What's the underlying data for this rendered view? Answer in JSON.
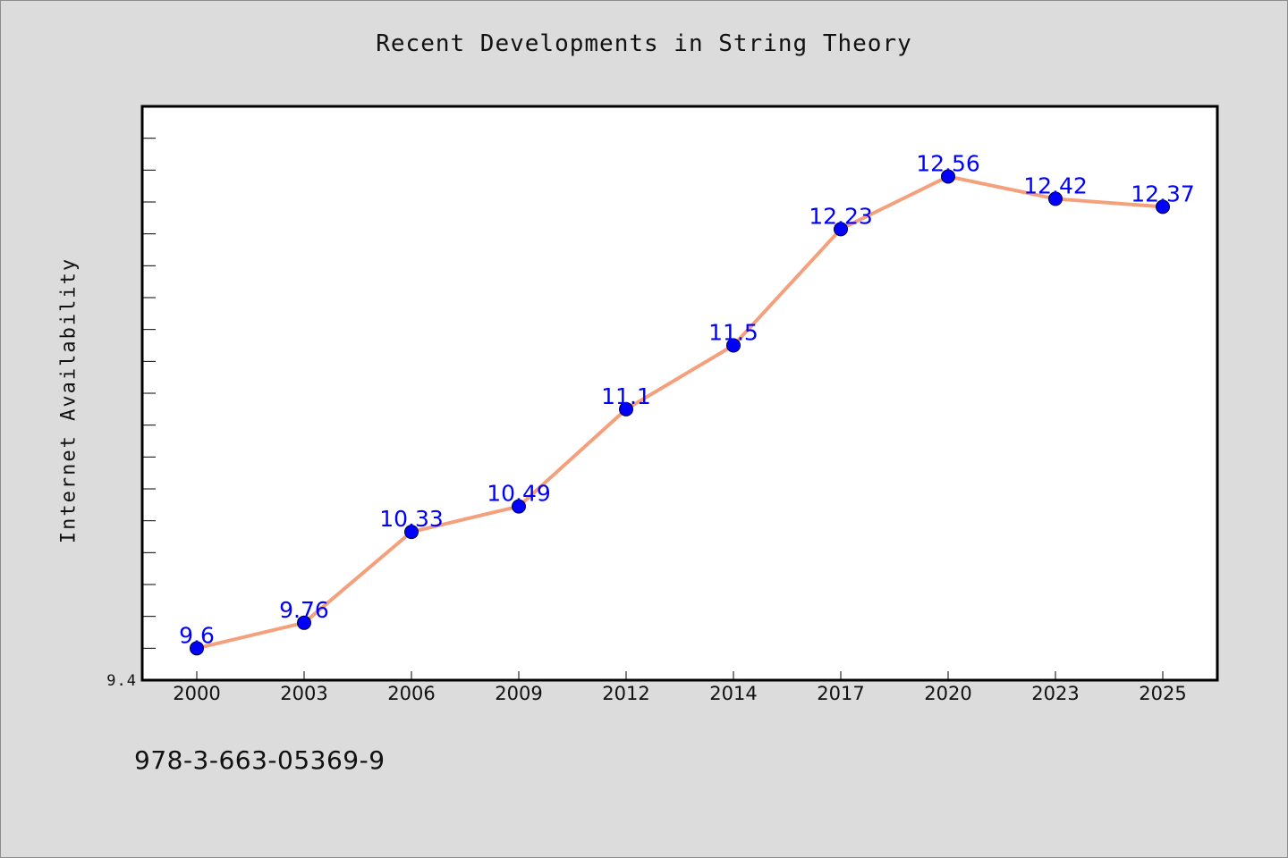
{
  "title": "Recent Developments in String Theory",
  "footer_code": "978-3-663-05369-9",
  "colors": {
    "background": "#dcdcdc",
    "plot_background": "#ffffff",
    "line": "#f4a07c",
    "marker": "#0000ff",
    "data_label": "#0000ff"
  },
  "chart_data": {
    "type": "line",
    "title": "Recent Developments in String Theory",
    "xlabel": "",
    "ylabel": "Internet Availability",
    "categories": [
      "2000",
      "2003",
      "2006",
      "2009",
      "2012",
      "2014",
      "2017",
      "2020",
      "2023",
      "2025"
    ],
    "series": [
      {
        "values": [
          9.6,
          9.76,
          10.33,
          10.49,
          11.1,
          11.5,
          12.23,
          12.56,
          12.42,
          12.37
        ]
      }
    ],
    "data_labels": [
      "9.6",
      "9.76",
      "10.33",
      "10.49",
      "11.1",
      "11.5",
      "12.23",
      "12.56",
      "12.42",
      "12.37"
    ],
    "y_tick_labels": [
      "9.4"
    ],
    "ylim": [
      9.4,
      13.0
    ],
    "grid": false,
    "legend": "none"
  }
}
